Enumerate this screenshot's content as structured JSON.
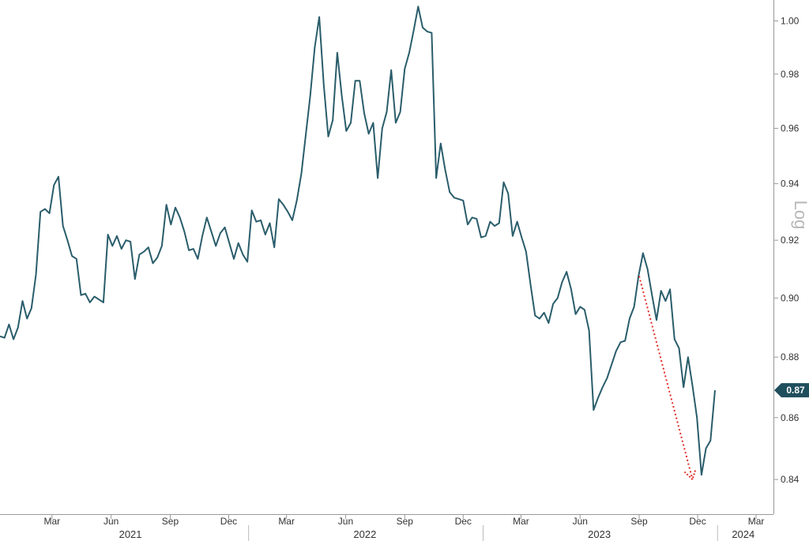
{
  "chart_data": {
    "type": "line",
    "title": "",
    "xlabel": "",
    "ylabel": "Log",
    "y_scale": "log",
    "ylim": [
      0.829,
      1.008
    ],
    "y_ticks": [
      "0.84",
      "0.86",
      "0.88",
      "0.90",
      "0.92",
      "0.94",
      "0.96",
      "0.98",
      "1.00"
    ],
    "x_range": [
      "2020-12-10",
      "2024-03-28"
    ],
    "month_ticks": [
      {
        "date": "2021-03-01",
        "label": "Mar"
      },
      {
        "date": "2021-06-01",
        "label": "Jun"
      },
      {
        "date": "2021-09-01",
        "label": "Sep"
      },
      {
        "date": "2021-12-01",
        "label": "Dec"
      },
      {
        "date": "2022-03-01",
        "label": "Mar"
      },
      {
        "date": "2022-06-01",
        "label": "Jun"
      },
      {
        "date": "2022-09-01",
        "label": "Sep"
      },
      {
        "date": "2022-12-01",
        "label": "Dec"
      },
      {
        "date": "2023-03-01",
        "label": "Mar"
      },
      {
        "date": "2023-06-01",
        "label": "Jun"
      },
      {
        "date": "2023-09-01",
        "label": "Sep"
      },
      {
        "date": "2023-12-01",
        "label": "Dec"
      },
      {
        "date": "2024-03-01",
        "label": "Mar"
      }
    ],
    "years": [
      {
        "label": "2021",
        "center": "2021-07-01"
      },
      {
        "label": "2022",
        "center": "2022-07-01"
      },
      {
        "label": "2023",
        "center": "2023-07-01"
      },
      {
        "label": "2024",
        "center": "2024-02-10"
      }
    ],
    "year_dividers": [
      "2022-01-01",
      "2023-01-01",
      "2024-01-01"
    ],
    "last_value_label": "0.87",
    "line_color": "#2a5d6b",
    "arrow_color": "#e0302a",
    "grid": false,
    "legend": "none",
    "series": [
      {
        "values": [
          [
            "2020-12-10",
            0.887
          ],
          [
            "2020-12-17",
            0.8865
          ],
          [
            "2020-12-24",
            0.891
          ],
          [
            "2020-12-31",
            0.886
          ],
          [
            "2021-01-07",
            0.89
          ],
          [
            "2021-01-14",
            0.899
          ],
          [
            "2021-01-21",
            0.893
          ],
          [
            "2021-01-28",
            0.8965
          ],
          [
            "2021-02-04",
            0.908
          ],
          [
            "2021-02-11",
            0.93
          ],
          [
            "2021-02-18",
            0.931
          ],
          [
            "2021-02-25",
            0.9295
          ],
          [
            "2021-03-04",
            0.9395
          ],
          [
            "2021-03-11",
            0.9425
          ],
          [
            "2021-03-18",
            0.925
          ],
          [
            "2021-03-25",
            0.92
          ],
          [
            "2021-04-01",
            0.9145
          ],
          [
            "2021-04-08",
            0.9135
          ],
          [
            "2021-04-15",
            0.901
          ],
          [
            "2021-04-22",
            0.9015
          ],
          [
            "2021-04-29",
            0.8985
          ],
          [
            "2021-05-06",
            0.9005
          ],
          [
            "2021-05-13",
            0.8995
          ],
          [
            "2021-05-20",
            0.8985
          ],
          [
            "2021-05-27",
            0.922
          ],
          [
            "2021-06-03",
            0.918
          ],
          [
            "2021-06-10",
            0.9215
          ],
          [
            "2021-06-17",
            0.917
          ],
          [
            "2021-06-24",
            0.92
          ],
          [
            "2021-07-01",
            0.9195
          ],
          [
            "2021-07-08",
            0.9065
          ],
          [
            "2021-07-15",
            0.915
          ],
          [
            "2021-07-22",
            0.916
          ],
          [
            "2021-07-29",
            0.9175
          ],
          [
            "2021-08-05",
            0.912
          ],
          [
            "2021-08-12",
            0.914
          ],
          [
            "2021-08-19",
            0.918
          ],
          [
            "2021-08-26",
            0.9325
          ],
          [
            "2021-09-02",
            0.9255
          ],
          [
            "2021-09-09",
            0.9315
          ],
          [
            "2021-09-16",
            0.928
          ],
          [
            "2021-09-23",
            0.923
          ],
          [
            "2021-09-30",
            0.9165
          ],
          [
            "2021-10-07",
            0.917
          ],
          [
            "2021-10-14",
            0.9135
          ],
          [
            "2021-10-21",
            0.9215
          ],
          [
            "2021-10-28",
            0.928
          ],
          [
            "2021-11-04",
            0.923
          ],
          [
            "2021-11-11",
            0.918
          ],
          [
            "2021-11-18",
            0.9225
          ],
          [
            "2021-11-25",
            0.9245
          ],
          [
            "2021-12-02",
            0.919
          ],
          [
            "2021-12-09",
            0.9135
          ],
          [
            "2021-12-16",
            0.919
          ],
          [
            "2021-12-23",
            0.915
          ],
          [
            "2021-12-30",
            0.9125
          ],
          [
            "2022-01-06",
            0.9305
          ],
          [
            "2022-01-13",
            0.9265
          ],
          [
            "2022-01-20",
            0.927
          ],
          [
            "2022-01-27",
            0.922
          ],
          [
            "2022-02-03",
            0.926
          ],
          [
            "2022-02-10",
            0.9175
          ],
          [
            "2022-02-17",
            0.9345
          ],
          [
            "2022-02-24",
            0.9325
          ],
          [
            "2022-03-03",
            0.93
          ],
          [
            "2022-03-10",
            0.927
          ],
          [
            "2022-03-17",
            0.934
          ],
          [
            "2022-03-24",
            0.9435
          ],
          [
            "2022-03-31",
            0.9575
          ],
          [
            "2022-04-07",
            0.972
          ],
          [
            "2022-04-14",
            0.99
          ],
          [
            "2022-04-21",
            1.0015
          ],
          [
            "2022-04-28",
            0.976
          ],
          [
            "2022-05-05",
            0.957
          ],
          [
            "2022-05-12",
            0.963
          ],
          [
            "2022-05-19",
            0.988
          ],
          [
            "2022-05-26",
            0.972
          ],
          [
            "2022-06-02",
            0.959
          ],
          [
            "2022-06-09",
            0.962
          ],
          [
            "2022-06-16",
            0.9775
          ],
          [
            "2022-06-23",
            0.9775
          ],
          [
            "2022-06-30",
            0.9655
          ],
          [
            "2022-07-07",
            0.958
          ],
          [
            "2022-07-14",
            0.962
          ],
          [
            "2022-07-21",
            0.942
          ],
          [
            "2022-07-28",
            0.96
          ],
          [
            "2022-08-04",
            0.966
          ],
          [
            "2022-08-11",
            0.9815
          ],
          [
            "2022-08-18",
            0.962
          ],
          [
            "2022-08-25",
            0.966
          ],
          [
            "2022-09-01",
            0.982
          ],
          [
            "2022-09-08",
            0.988
          ],
          [
            "2022-09-15",
            0.9965
          ],
          [
            "2022-09-22",
            1.0055
          ],
          [
            "2022-09-29",
            0.9975
          ],
          [
            "2022-10-06",
            0.996
          ],
          [
            "2022-10-13",
            0.9955
          ],
          [
            "2022-10-20",
            0.942
          ],
          [
            "2022-10-27",
            0.9545
          ],
          [
            "2022-11-03",
            0.945
          ],
          [
            "2022-11-10",
            0.937
          ],
          [
            "2022-11-17",
            0.935
          ],
          [
            "2022-11-24",
            0.9345
          ],
          [
            "2022-12-01",
            0.934
          ],
          [
            "2022-12-08",
            0.9255
          ],
          [
            "2022-12-15",
            0.928
          ],
          [
            "2022-12-22",
            0.9275
          ],
          [
            "2022-12-29",
            0.921
          ],
          [
            "2023-01-05",
            0.9215
          ],
          [
            "2023-01-12",
            0.9265
          ],
          [
            "2023-01-19",
            0.925
          ],
          [
            "2023-01-26",
            0.926
          ],
          [
            "2023-02-02",
            0.9405
          ],
          [
            "2023-02-09",
            0.9365
          ],
          [
            "2023-02-16",
            0.9215
          ],
          [
            "2023-02-23",
            0.9265
          ],
          [
            "2023-03-02",
            0.921
          ],
          [
            "2023-03-09",
            0.916
          ],
          [
            "2023-03-16",
            0.9045
          ],
          [
            "2023-03-23",
            0.894
          ],
          [
            "2023-03-30",
            0.893
          ],
          [
            "2023-04-06",
            0.895
          ],
          [
            "2023-04-13",
            0.8915
          ],
          [
            "2023-04-20",
            0.898
          ],
          [
            "2023-04-27",
            0.9
          ],
          [
            "2023-05-04",
            0.9055
          ],
          [
            "2023-05-11",
            0.909
          ],
          [
            "2023-05-18",
            0.903
          ],
          [
            "2023-05-25",
            0.8945
          ],
          [
            "2023-06-01",
            0.897
          ],
          [
            "2023-06-08",
            0.896
          ],
          [
            "2023-06-15",
            0.889
          ],
          [
            "2023-06-22",
            0.8625
          ],
          [
            "2023-06-29",
            0.8665
          ],
          [
            "2023-07-06",
            0.87
          ],
          [
            "2023-07-13",
            0.873
          ],
          [
            "2023-07-20",
            0.8775
          ],
          [
            "2023-07-27",
            0.882
          ],
          [
            "2023-08-03",
            0.885
          ],
          [
            "2023-08-10",
            0.8855
          ],
          [
            "2023-08-17",
            0.893
          ],
          [
            "2023-08-24",
            0.897
          ],
          [
            "2023-08-31",
            0.9075
          ],
          [
            "2023-09-07",
            0.9155
          ],
          [
            "2023-09-14",
            0.91
          ],
          [
            "2023-09-21",
            0.901
          ],
          [
            "2023-09-28",
            0.8925
          ],
          [
            "2023-10-05",
            0.9025
          ],
          [
            "2023-10-12",
            0.899
          ],
          [
            "2023-10-19",
            0.903
          ],
          [
            "2023-10-26",
            0.886
          ],
          [
            "2023-11-02",
            0.883
          ],
          [
            "2023-11-09",
            0.87
          ],
          [
            "2023-11-16",
            0.88
          ],
          [
            "2023-11-23",
            0.8705
          ],
          [
            "2023-11-30",
            0.86
          ],
          [
            "2023-12-07",
            0.8415
          ],
          [
            "2023-12-14",
            0.85
          ],
          [
            "2023-12-21",
            0.8525
          ],
          [
            "2023-12-28",
            0.869
          ]
        ]
      }
    ],
    "annotations": [
      {
        "type": "arrow",
        "style": "dotted",
        "from": [
          "2023-09-01",
          0.9075
        ],
        "to": [
          "2023-11-23",
          0.84
        ]
      }
    ]
  }
}
